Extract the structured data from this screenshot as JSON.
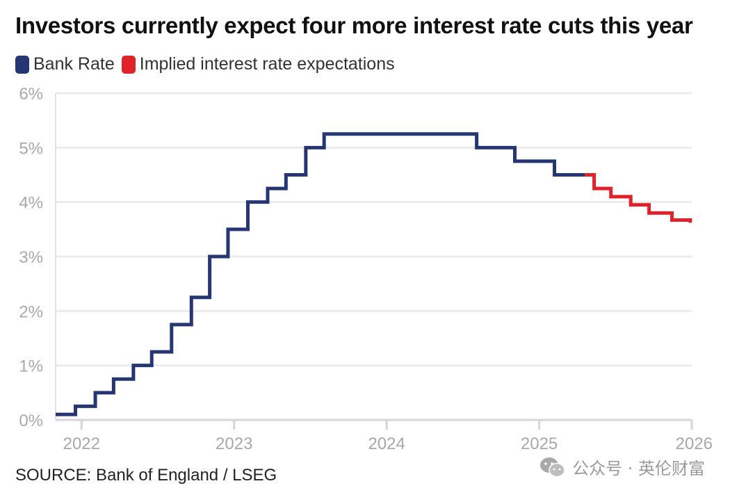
{
  "header": {
    "title": "Investors currently expect four more interest rate cuts this year"
  },
  "legend": [
    {
      "label": "Bank Rate",
      "color": "#263672"
    },
    {
      "label": "Implied interest rate expectations",
      "color": "#e0232a"
    }
  ],
  "footer": {
    "source": "SOURCE: Bank of England / LSEG",
    "watermark": "公众号 · 英伦财富",
    "watermark_icon": "wechat-icon"
  },
  "chart_data": {
    "type": "line",
    "step": true,
    "y_ticks": [
      {
        "value": 0,
        "label": "0%"
      },
      {
        "value": 1,
        "label": "1%"
      },
      {
        "value": 2,
        "label": "2%"
      },
      {
        "value": 3,
        "label": "3%"
      },
      {
        "value": 4,
        "label": "4%"
      },
      {
        "value": 5,
        "label": "5%"
      },
      {
        "value": 6,
        "label": "6%"
      }
    ],
    "x_ticks": [
      {
        "value": 2022,
        "label": "2022"
      },
      {
        "value": 2023,
        "label": "2023"
      },
      {
        "value": 2024,
        "label": "2024"
      },
      {
        "value": 2025,
        "label": "2025"
      },
      {
        "value": 2026,
        "label": "2026"
      }
    ],
    "xlim": [
      2021.83,
      2026.0
    ],
    "ylim": [
      0,
      6
    ],
    "grid": true,
    "legend_position": "top-left",
    "series": [
      {
        "name": "Bank Rate",
        "color": "#263672",
        "points": [
          [
            2021.83,
            0.1
          ],
          [
            2021.96,
            0.25
          ],
          [
            2022.09,
            0.5
          ],
          [
            2022.21,
            0.75
          ],
          [
            2022.34,
            1.0
          ],
          [
            2022.46,
            1.25
          ],
          [
            2022.59,
            1.75
          ],
          [
            2022.72,
            2.25
          ],
          [
            2022.84,
            3.0
          ],
          [
            2022.96,
            3.5
          ],
          [
            2023.09,
            4.0
          ],
          [
            2023.22,
            4.25
          ],
          [
            2023.34,
            4.5
          ],
          [
            2023.47,
            5.0
          ],
          [
            2023.59,
            5.25
          ],
          [
            2024.59,
            5.0
          ],
          [
            2024.84,
            4.75
          ],
          [
            2025.1,
            4.5
          ],
          [
            2025.3,
            4.5
          ]
        ]
      },
      {
        "name": "Implied interest rate expectations",
        "color": "#e0232a",
        "points": [
          [
            2025.3,
            4.5
          ],
          [
            2025.36,
            4.25
          ],
          [
            2025.47,
            4.1
          ],
          [
            2025.6,
            3.95
          ],
          [
            2025.72,
            3.8
          ],
          [
            2025.87,
            3.67
          ],
          [
            2025.99,
            3.62
          ]
        ]
      }
    ]
  }
}
